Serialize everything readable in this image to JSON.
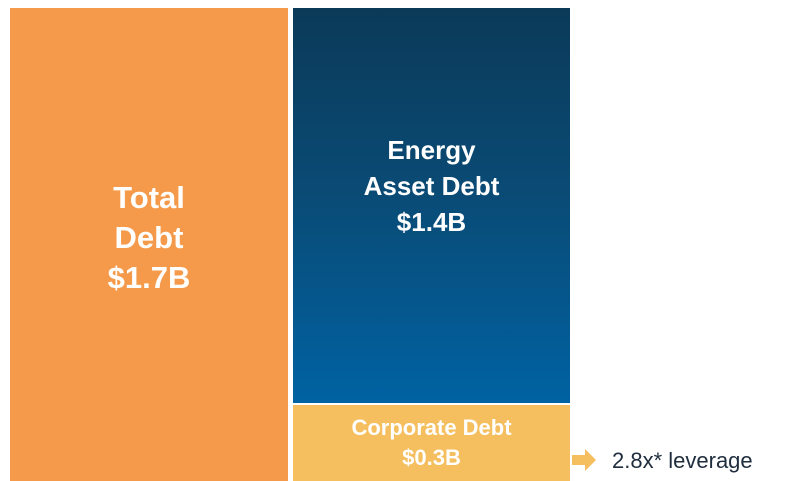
{
  "blocks": [
    {
      "lines": [
        "Total",
        "Debt",
        "$1.7B"
      ]
    },
    {
      "lines": [
        "Energy",
        "Asset Debt",
        "$1.4B"
      ]
    },
    {
      "lines": [
        "Corporate Debt",
        "$0.3B"
      ]
    }
  ],
  "annotation": "2.8x* leverage"
}
